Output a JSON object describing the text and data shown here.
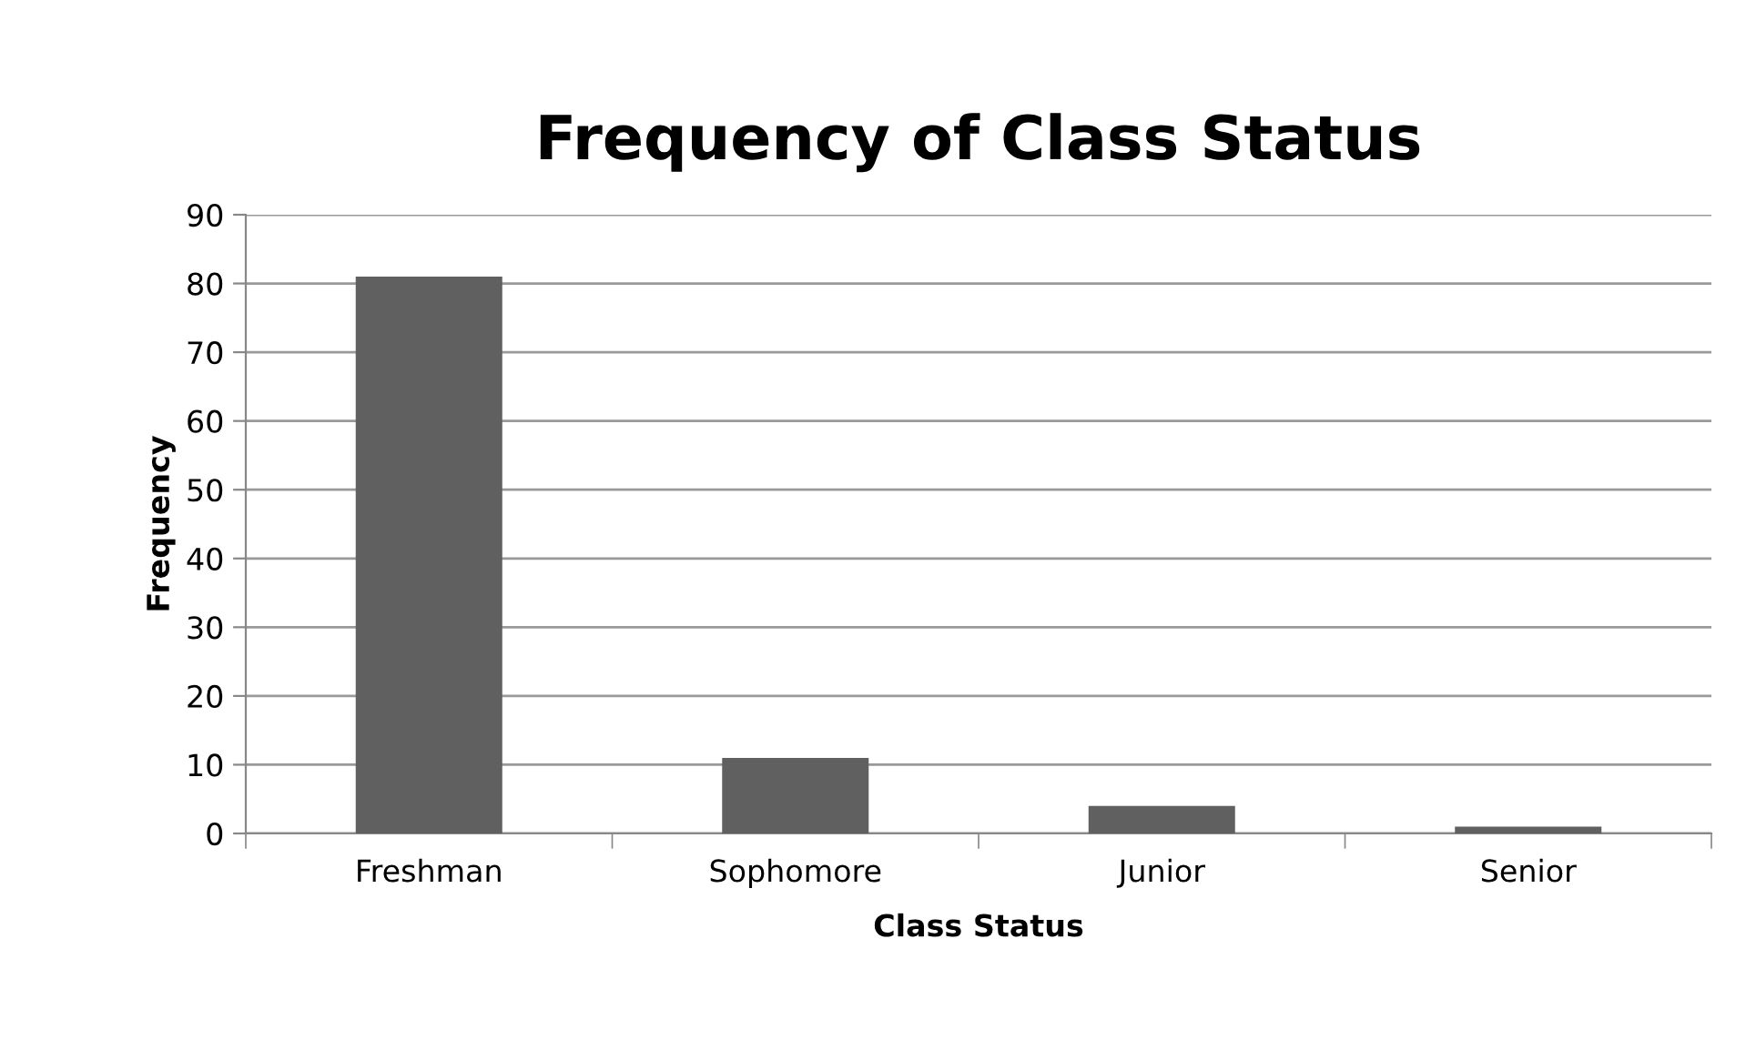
{
  "chart_data": {
    "type": "bar",
    "title": "Frequency of Class Status",
    "xlabel": "Class Status",
    "ylabel": "Frequency",
    "categories": [
      "Freshman",
      "Sophomore",
      "Junior",
      "Senior"
    ],
    "values": [
      81,
      11,
      4,
      1
    ],
    "color": "#606060",
    "ylim": [
      0,
      90
    ],
    "yticks": [
      0,
      10,
      20,
      30,
      40,
      50,
      60,
      70,
      80,
      90
    ],
    "grid": "y",
    "legend": false
  }
}
